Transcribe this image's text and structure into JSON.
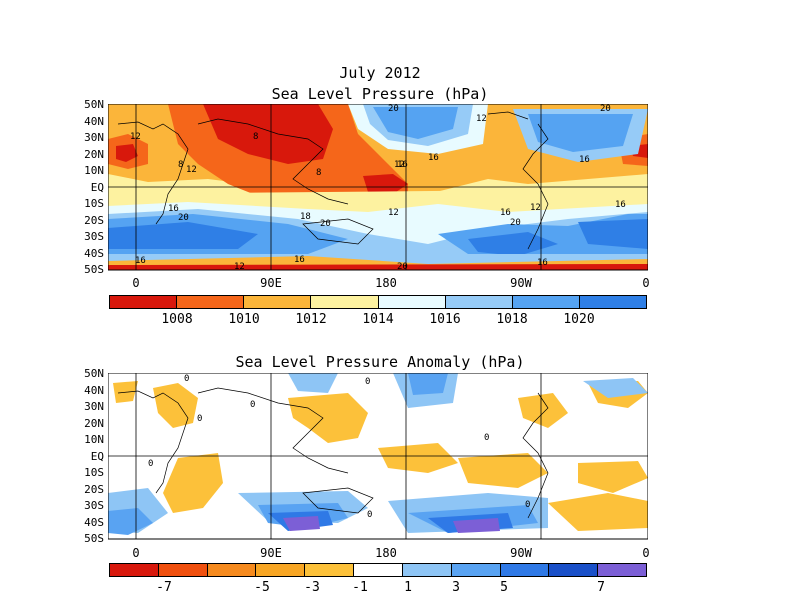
{
  "panel1": {
    "title_line1": "July 2012",
    "title_line2": "Sea Level Pressure (hPa)",
    "lat_labels": [
      "50N",
      "40N",
      "30N",
      "20N",
      "10N",
      "EQ",
      "10S",
      "20S",
      "30S",
      "40S",
      "50S"
    ],
    "lon_labels": [
      "0",
      "90E",
      "180",
      "90W",
      "0"
    ],
    "colorbar_labels": [
      "1008",
      "1010",
      "1012",
      "1014",
      "1016",
      "1018",
      "1020"
    ],
    "colorbar_colors": [
      "#d8180c",
      "#f5661a",
      "#fbb53a",
      "#fdf2a0",
      "#e8fbff",
      "#96cbf7",
      "#55a3f2",
      "#2f7fe6"
    ],
    "contour_labels": [
      "12",
      "8",
      "20",
      "12",
      "16",
      "16",
      "20",
      "8",
      "12",
      "8",
      "12",
      "16",
      "16",
      "20",
      "18",
      "12",
      "16",
      "12",
      "20",
      "16",
      "20",
      "16",
      "12",
      "16",
      "16",
      "20"
    ]
  },
  "panel2": {
    "title": "Sea Level Pressure Anomaly (hPa)",
    "lat_labels": [
      "50N",
      "40N",
      "30N",
      "20N",
      "10N",
      "EQ",
      "10S",
      "20S",
      "30S",
      "40S",
      "50S"
    ],
    "lon_labels": [
      "0",
      "90E",
      "180",
      "90W",
      "0"
    ],
    "colorbar_labels": [
      "-7",
      "-5",
      "-3",
      "-1",
      "1",
      "3",
      "5",
      "7"
    ],
    "colorbar_colors": [
      "#d8180c",
      "#f0500e",
      "#f58a1e",
      "#f8a624",
      "#fcc13a",
      "#ffffff",
      "#8ec5f5",
      "#59a3f2",
      "#2f79e6",
      "#1a50c8",
      "#7c5fd6"
    ],
    "contour_labels": [
      "0",
      "0",
      "0",
      "0",
      "0",
      "0",
      "0",
      "0"
    ]
  }
}
